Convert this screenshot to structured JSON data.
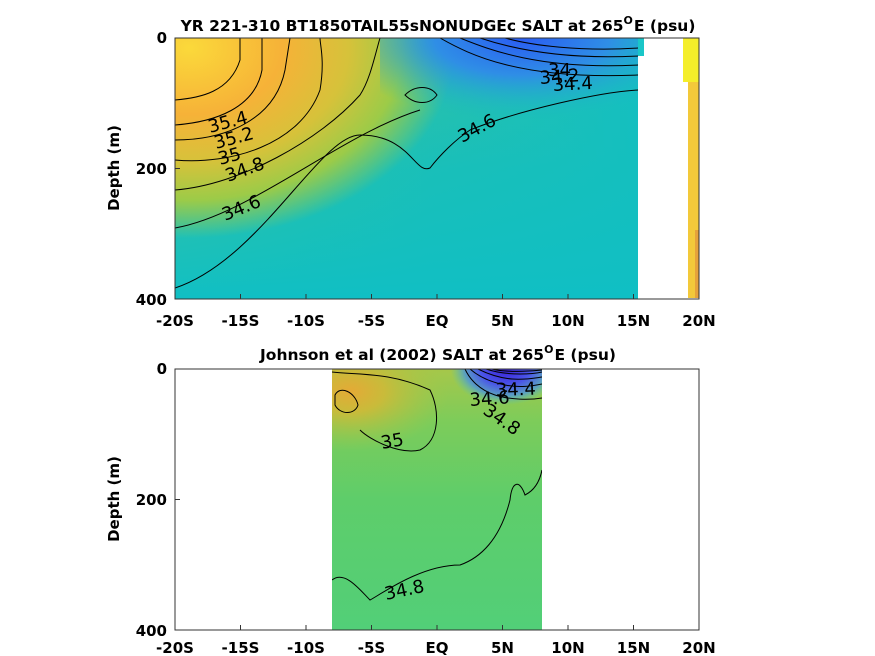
{
  "chart_data": [
    {
      "type": "contour",
      "title_main": "YR 221-310 BT1850TAIL55sNONUDGEc SALT at 265",
      "title_sup": "O",
      "title_tail": "E (psu)",
      "ylabel": "Depth (m)",
      "x_tick_labels": [
        "-20S",
        "-15S",
        "-10S",
        "-5S",
        "EQ",
        "5N",
        "10N",
        "15N",
        "20N"
      ],
      "x_tick_values": [
        -20,
        -15,
        -10,
        -5,
        0,
        5,
        10,
        15,
        20
      ],
      "y_tick_labels": [
        "0",
        "200",
        "400"
      ],
      "y_tick_values": [
        0,
        200,
        400
      ],
      "xlim": [
        -20,
        20
      ],
      "ylim": [
        0,
        400
      ],
      "y_reversed": true,
      "data_extent_lat": [
        -20,
        15.5
      ],
      "contour_labels": [
        "35.4",
        "35.2",
        "35",
        "34.8",
        "34.6",
        "34.6",
        "34.4",
        "34.2",
        "34"
      ],
      "colors": {
        "high": "#f8d23a",
        "mid_high": "#f4a83a",
        "mid": "#7cc75a",
        "low": "#12bfc0",
        "fresh": "#2f6ef0"
      }
    },
    {
      "type": "contour",
      "title_main": "Johnson et al (2002) SALT at 265",
      "title_sup": "O",
      "title_tail": "E (psu)",
      "ylabel": "Depth (m)",
      "x_tick_labels": [
        "-20S",
        "-15S",
        "-10S",
        "-5S",
        "EQ",
        "5N",
        "10N",
        "15N",
        "20N"
      ],
      "x_tick_values": [
        -20,
        -15,
        -10,
        -5,
        0,
        5,
        10,
        15,
        20
      ],
      "y_tick_labels": [
        "0",
        "200",
        "400"
      ],
      "y_tick_values": [
        0,
        200,
        400
      ],
      "xlim": [
        -20,
        20
      ],
      "ylim": [
        0,
        400
      ],
      "y_reversed": true,
      "data_extent_lat": [
        -8,
        8
      ],
      "contour_labels": [
        "35",
        "34.8",
        "34.6",
        "34.4",
        "34.8"
      ],
      "colors": {
        "high": "#e6b53a",
        "mid": "#6bcc62",
        "low": "#4fd080",
        "fresh": "#4040e0"
      }
    }
  ]
}
